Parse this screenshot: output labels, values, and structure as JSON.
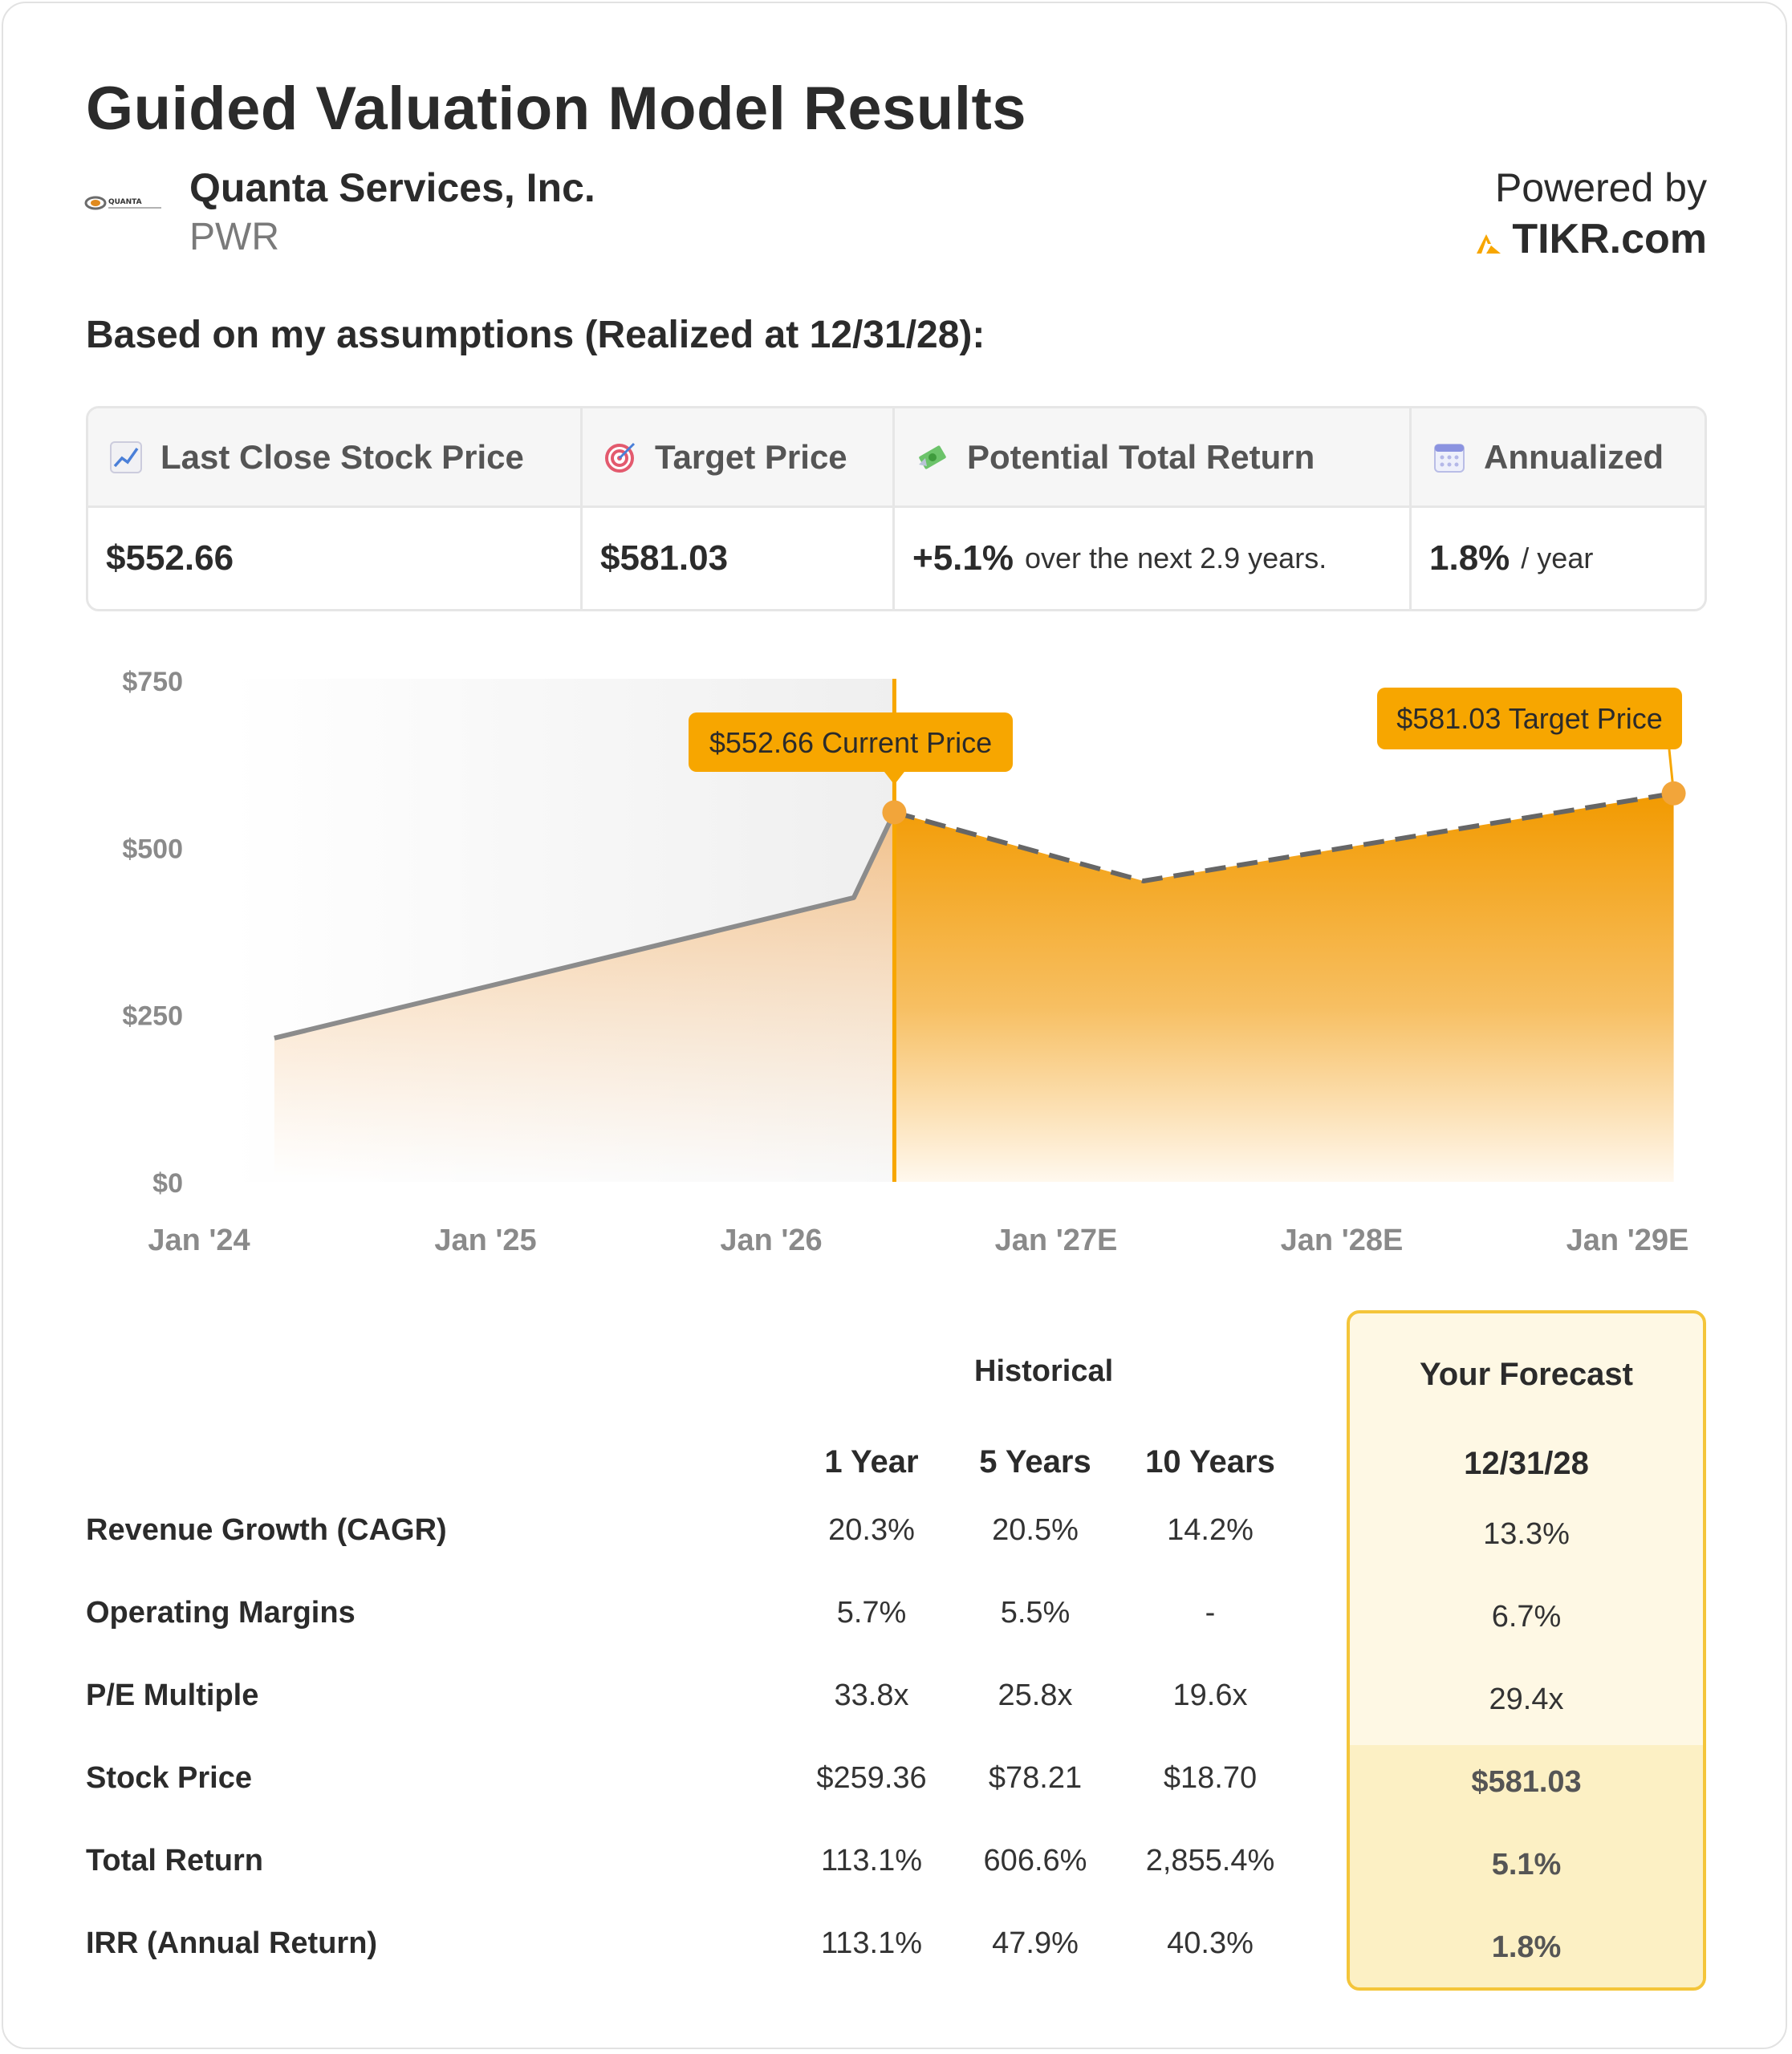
{
  "header": {
    "title": "Guided Valuation Model Results",
    "company": "Quanta Services, Inc.",
    "ticker": "PWR",
    "logo_text": "QUANTA",
    "powered_by": "Powered by",
    "brand": "TIKR.com"
  },
  "subhead": "Based on my assumptions (Realized at 12/31/28):",
  "metrics": {
    "last_close_label": "Last Close Stock Price",
    "last_close_value": "$552.66",
    "target_label": "Target Price",
    "target_value": "$581.03",
    "return_label": "Potential Total Return",
    "return_value": "+5.1%",
    "return_note": "over the next 2.9 years.",
    "annualized_label": "Annualized",
    "annualized_value": "1.8%",
    "annualized_note": "/ year"
  },
  "colors": {
    "accent": "#f7a600",
    "accent_dark": "#f29a00",
    "grey_line": "#8c8c8c",
    "forecast_border": "#f4c53a"
  },
  "chart_data": {
    "type": "area",
    "ylim": [
      0,
      750
    ],
    "yticks": [
      "$750",
      "$500",
      "$250",
      "$0"
    ],
    "ytick_values": [
      750,
      500,
      250,
      0
    ],
    "xticks": [
      "Jan '24",
      "Jan '25",
      "Jan '26",
      "Jan '27E",
      "Jan '28E",
      "Jan '29E"
    ],
    "xtick_values": [
      2024.0,
      2025.0,
      2026.0,
      2027.0,
      2028.0,
      2029.0
    ],
    "xlim": [
      2023.87,
      2029.0
    ],
    "historical": {
      "name": "Historical",
      "x": [
        2024.13,
        2026.13,
        2026.27
      ],
      "y": [
        215,
        425,
        552.66
      ]
    },
    "forecast": {
      "name": "Forecast",
      "x": [
        2026.27,
        2027.13,
        2028.96
      ],
      "y": [
        552.66,
        450,
        581.03
      ]
    },
    "current_marker": {
      "x": 2026.27,
      "y": 552.66,
      "label": "$552.66 Current Price"
    },
    "target_marker": {
      "x": 2028.96,
      "y": 581.03,
      "label": "$581.03 Target Price"
    }
  },
  "table": {
    "historical_label": "Historical",
    "forecast_label": "Your Forecast",
    "columns": [
      "1 Year",
      "5 Years",
      "10 Years"
    ],
    "forecast_date": "12/31/28",
    "rows": [
      {
        "label": "Revenue Growth (CAGR)",
        "values": [
          "20.3%",
          "20.5%",
          "14.2%"
        ],
        "forecast": "13.3%"
      },
      {
        "label": "Operating Margins",
        "values": [
          "5.7%",
          "5.5%",
          "-"
        ],
        "forecast": "6.7%"
      },
      {
        "label": "P/E Multiple",
        "values": [
          "33.8x",
          "25.8x",
          "19.6x"
        ],
        "forecast": "29.4x"
      },
      {
        "label": "Stock Price",
        "values": [
          "$259.36",
          "$78.21",
          "$18.70"
        ],
        "forecast": "$581.03"
      },
      {
        "label": "Total Return",
        "values": [
          "113.1%",
          "606.6%",
          "2,855.4%"
        ],
        "forecast": "5.1%"
      },
      {
        "label": "IRR (Annual Return)",
        "values": [
          "113.1%",
          "47.9%",
          "40.3%"
        ],
        "forecast": "1.8%"
      }
    ]
  }
}
